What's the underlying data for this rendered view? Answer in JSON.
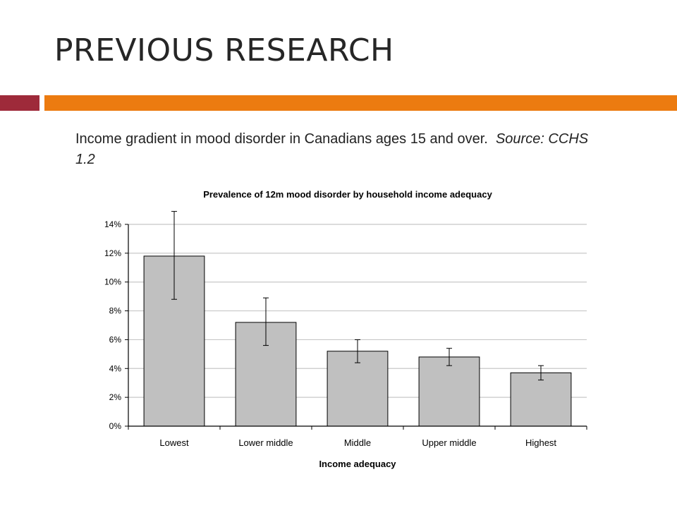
{
  "slide": {
    "title": "PREVIOUS RESEARCH",
    "caption_text": "Income gradient in mood disorder in Canadians ages 15 and over.",
    "caption_source": "Source: CCHS 1.2"
  },
  "colors": {
    "accent_red": "#9e2a3a",
    "accent_orange": "#ec7b10",
    "bar_fill": "#c0c0c0",
    "bar_stroke": "#000000",
    "grid": "#c8c8c8"
  },
  "chart_data": {
    "type": "bar",
    "title": "Prevalence of 12m mood disorder by household income adequacy",
    "xlabel": "Income adequacy",
    "ylabel": "",
    "categories": [
      "Lowest",
      "Lower middle",
      "Middle",
      "Upper middle",
      "Highest"
    ],
    "values": [
      11.8,
      7.2,
      5.2,
      4.8,
      3.7
    ],
    "error_low": [
      8.8,
      5.6,
      4.4,
      4.2,
      3.2
    ],
    "error_high": [
      14.9,
      8.9,
      6.0,
      5.4,
      4.2
    ],
    "ylim": [
      0,
      14
    ],
    "yticks": [
      "0%",
      "2%",
      "4%",
      "6%",
      "8%",
      "10%",
      "12%",
      "14%"
    ],
    "grid": true,
    "legend": "none"
  }
}
